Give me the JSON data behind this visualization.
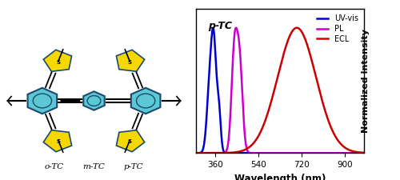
{
  "title": "p-TC",
  "xlabel": "Wavelength (nm)",
  "ylabel": "Normalized Intensity",
  "xlim": [
    280,
    980
  ],
  "ylim": [
    0,
    1.15
  ],
  "xticks": [
    360,
    540,
    720,
    900
  ],
  "uvvis_color": "#0000cc",
  "pl_color": "#cc00cc",
  "ecl_color": "#cc0000",
  "legend_labels": [
    "UV-vis",
    "PL",
    "ECL"
  ],
  "background_color": "#ffffff"
}
